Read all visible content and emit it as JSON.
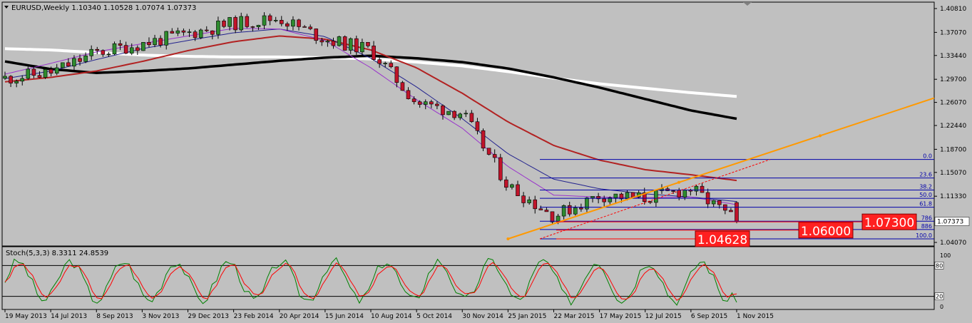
{
  "main_panel": {
    "label": "EURUSD,Weekly  1.10340 1.10528 1.07074 1.07373",
    "price_tag": "1.07373",
    "y_ticks": [
      "1.40810",
      "1.37070",
      "1.33440",
      "1.29700",
      "1.26070",
      "1.22440",
      "1.18700",
      "1.15070",
      "1.11330",
      "1.07373",
      "1.04070"
    ],
    "fib_labels": [
      "0.0",
      "23.6",
      "38.2",
      "50.0",
      "61.8",
      "786",
      "886",
      "100.0"
    ],
    "annotations": [
      "1.04628",
      "1.06000",
      "1.07300"
    ],
    "colors": {
      "bull": "#2e8b2e",
      "bear": "#c0142a",
      "ma_white": "#ffffff",
      "ma_black": "#000000",
      "ma_red": "#b22222",
      "ma_navy": "#23238e",
      "ma_purple": "#9932cc",
      "trendline": "#ff9900",
      "fib": "#0000aa",
      "price_tag_bg": "#ffffff"
    }
  },
  "stoch_panel": {
    "label": "Stoch(5,3,3) 8.3311 24.8539",
    "levels": [
      "80",
      "20"
    ],
    "y_ticks": [
      "100",
      "0"
    ],
    "colors": {
      "main": "#008000",
      "signal": "#ff0000"
    }
  },
  "x_axis": {
    "labels": [
      "19 May 2013",
      "14 Jul 2013",
      "8 Sep 2013",
      "3 Nov 2013",
      "29 Dec 2013",
      "23 Feb 2014",
      "20 Apr 2014",
      "15 Jun 2014",
      "10 Aug 2014",
      "5 Oct 2014",
      "30 Nov 2014",
      "25 Jan 2015",
      "22 Mar 2015",
      "17 May 2015",
      "12 Jul 2015",
      "6 Sep 2015",
      "1 Nov 2015"
    ]
  },
  "chart_data": {
    "type": "candlestick",
    "symbol": "EURUSD",
    "timeframe": "Weekly",
    "last_bar": {
      "open": 1.1034,
      "high": 1.10528,
      "low": 1.07074,
      "close": 1.07373
    },
    "x": [
      "19 May 2013",
      "14 Jul 2013",
      "8 Sep 2013",
      "3 Nov 2013",
      "29 Dec 2013",
      "23 Feb 2014",
      "20 Apr 2014",
      "15 Jun 2014",
      "10 Aug 2014",
      "5 Oct 2014",
      "30 Nov 2014",
      "25 Jan 2015",
      "22 Mar 2015",
      "17 May 2015",
      "12 Jul 2015",
      "6 Sep 2015",
      "1 Nov 2015"
    ],
    "close_path": [
      1.2985,
      1.3075,
      1.339,
      1.353,
      1.369,
      1.385,
      1.393,
      1.36,
      1.343,
      1.26,
      1.244,
      1.13,
      1.082,
      1.115,
      1.11,
      1.125,
      1.0737
    ],
    "ylim": [
      1.0407,
      1.4081
    ],
    "stochastic": {
      "period": "5,3,3",
      "main": 8.3311,
      "signal": 24.8539,
      "ylim": [
        0,
        100
      ],
      "levels": [
        20,
        80
      ]
    },
    "fibonacci": {
      "high": 1.171,
      "low": 1.0463,
      "levels": [
        {
          "label": "0.0",
          "value": 1.171
        },
        {
          "label": "23.6",
          "value": 1.142
        },
        {
          "label": "38.2",
          "value": 1.123
        },
        {
          "label": "50.0",
          "value": 1.11
        },
        {
          "label": "61.8",
          "value": 1.096
        },
        {
          "label": "786",
          "value": 1.074
        },
        {
          "label": "886",
          "value": 1.061
        },
        {
          "label": "100.0",
          "value": 1.0463
        }
      ]
    },
    "annotation_levels": [
      1.04628,
      1.06,
      1.073
    ],
    "moving_averages": [
      {
        "color": "#ffffff",
        "values": [
          1.345,
          1.343,
          1.339,
          1.335,
          1.333,
          1.332,
          1.332,
          1.331,
          1.329,
          1.324,
          1.318,
          1.309,
          1.299,
          1.29,
          1.283,
          1.276,
          1.27
        ]
      },
      {
        "color": "#000000",
        "values": [
          1.325,
          1.313,
          1.307,
          1.31,
          1.314,
          1.32,
          1.326,
          1.331,
          1.334,
          1.33,
          1.324,
          1.314,
          1.3,
          1.284,
          1.266,
          1.248,
          1.235
        ]
      },
      {
        "color": "#b22222",
        "values": [
          1.293,
          1.3,
          1.31,
          1.325,
          1.342,
          1.356,
          1.365,
          1.36,
          1.343,
          1.315,
          1.275,
          1.23,
          1.193,
          1.17,
          1.155,
          1.147,
          1.138
        ]
      },
      {
        "color": "#23238e",
        "values": [
          1.298,
          1.31,
          1.328,
          1.345,
          1.358,
          1.37,
          1.376,
          1.364,
          1.33,
          1.285,
          1.235,
          1.18,
          1.14,
          1.125,
          1.117,
          1.112,
          1.105
        ]
      },
      {
        "color": "#9932cc",
        "values": [
          1.305,
          1.322,
          1.34,
          1.353,
          1.365,
          1.377,
          1.376,
          1.358,
          1.315,
          1.265,
          1.22,
          1.16,
          1.115,
          1.112,
          1.111,
          1.112,
          1.1
        ]
      }
    ],
    "trendline": {
      "from": {
        "x": "25 Jan 2015",
        "y": 1.0463
      },
      "to": {
        "x": "1 Nov 2015",
        "y": 1.165
      }
    }
  }
}
